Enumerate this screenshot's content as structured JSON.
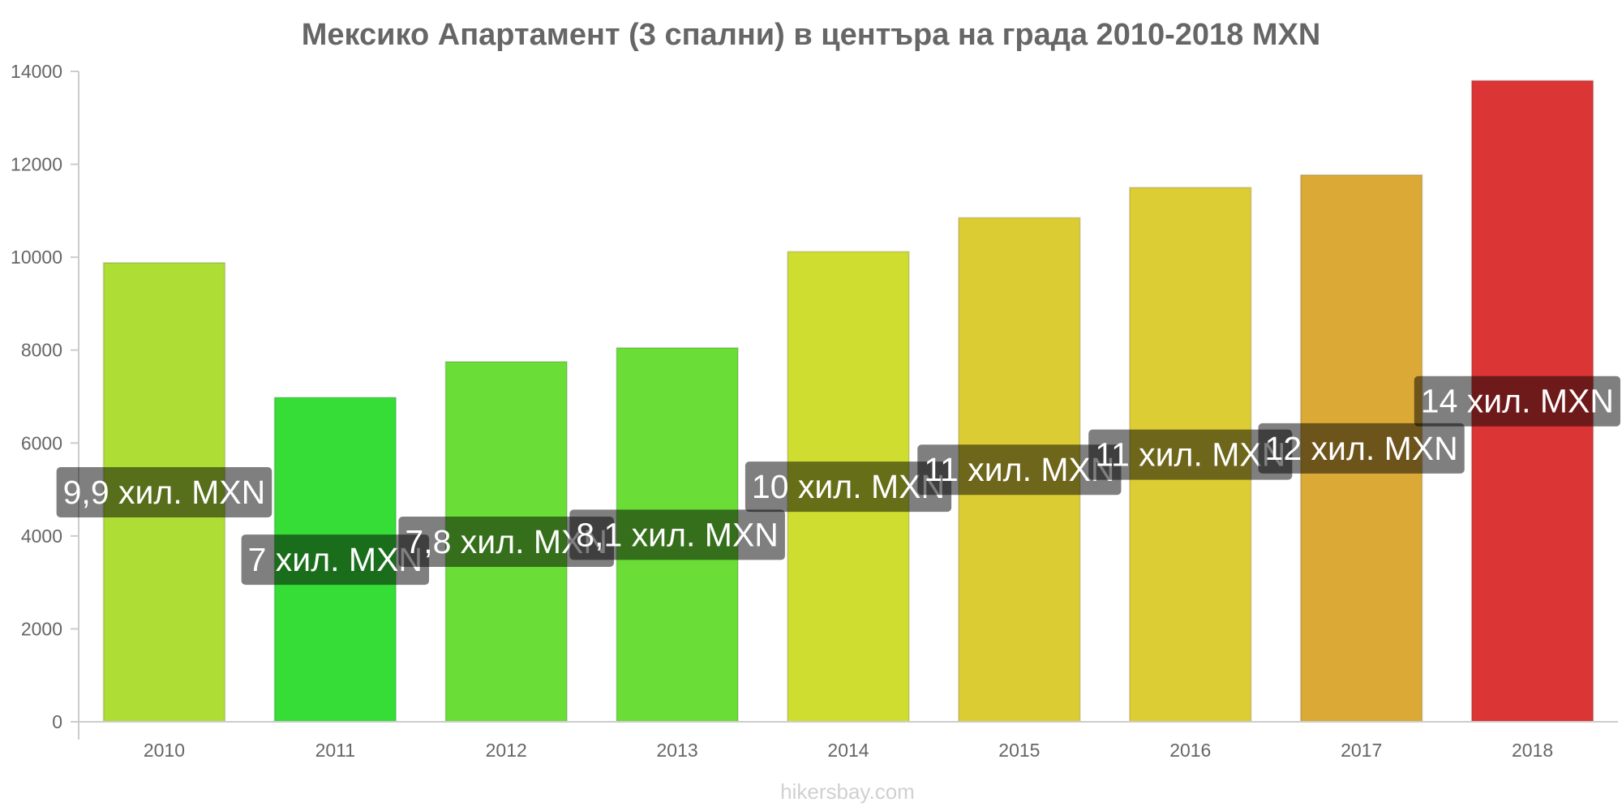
{
  "chart_data": {
    "type": "bar",
    "title": "Мексико Апартамент (3 спални) в центъра на града 2010-2018 MXN",
    "categories": [
      "2010",
      "2011",
      "2012",
      "2013",
      "2014",
      "2015",
      "2016",
      "2017",
      "2018"
    ],
    "values": [
      9880,
      6980,
      7750,
      8050,
      10120,
      10850,
      11500,
      11770,
      13800
    ],
    "data_labels": [
      "9,9 хил. MXN",
      "7 хил. MXN",
      "7,8 хил. MXN",
      "8,1 хил. MXN",
      "10 хил. MXN",
      "11 хил. MXN",
      "11 хил. MXN",
      "12 хил. MXN",
      "14 хил. MXN"
    ],
    "colors": [
      "#aedd36",
      "#35dd36",
      "#6ade36",
      "#6ade36",
      "#cfdd31",
      "#dccc34",
      "#ddcd34",
      "#dba935",
      "#dc3535"
    ],
    "yticks": [
      0,
      2000,
      4000,
      6000,
      8000,
      10000,
      12000,
      14000
    ],
    "ylim": [
      0,
      14000
    ],
    "xlabel": "",
    "ylabel": "",
    "grid": false,
    "legend": "none"
  },
  "watermark": "hikersbay.com"
}
